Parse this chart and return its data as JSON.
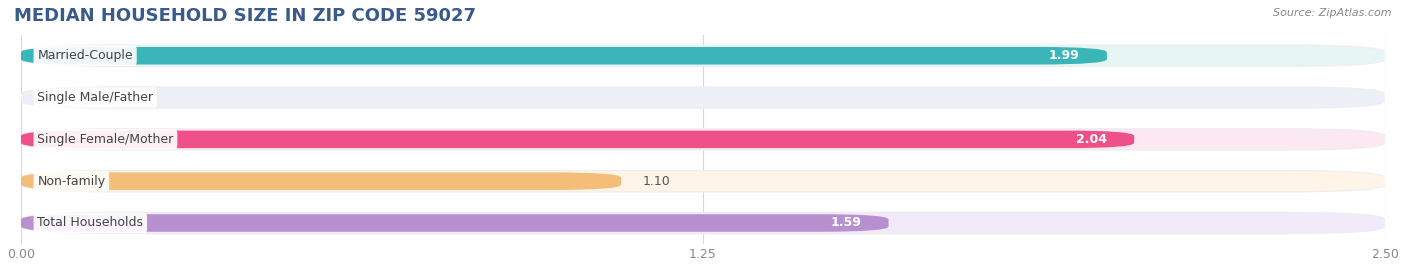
{
  "title": "MEDIAN HOUSEHOLD SIZE IN ZIP CODE 59027",
  "source": "Source: ZipAtlas.com",
  "categories": [
    "Married-Couple",
    "Single Male/Father",
    "Single Female/Mother",
    "Non-family",
    "Total Households"
  ],
  "values": [
    1.99,
    0.0,
    2.04,
    1.1,
    1.59
  ],
  "bar_colors": [
    "#3ab5b8",
    "#a0b4e0",
    "#f0508a",
    "#f5be78",
    "#b890d0"
  ],
  "bg_colors": [
    "#e8f5f5",
    "#edf0f8",
    "#fce8f2",
    "#fef5e8",
    "#f2eaf8"
  ],
  "pill_color": "#eeeeee",
  "xlim": [
    0,
    2.5
  ],
  "xticks": [
    0.0,
    1.25,
    2.5
  ],
  "xtick_labels": [
    "0.00",
    "1.25",
    "2.50"
  ],
  "title_fontsize": 13,
  "title_color": "#3a5a8a",
  "label_fontsize": 9,
  "value_fontsize": 9,
  "bar_height": 0.42,
  "figsize": [
    14.06,
    2.68
  ],
  "dpi": 100
}
